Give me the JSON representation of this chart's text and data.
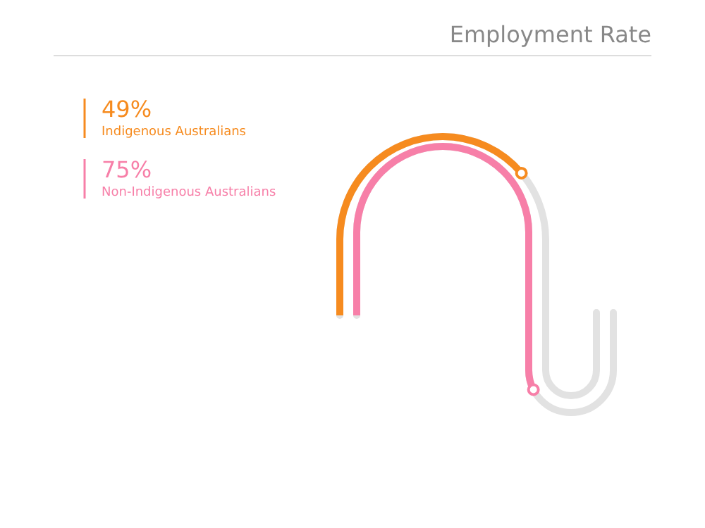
{
  "chart_data": {
    "type": "other",
    "title": "Employment Rate",
    "categories": [
      "Indigenous Australians",
      "Non-Indigenous Australians"
    ],
    "values": [
      49,
      75
    ],
    "value_labels": [
      "49%",
      "75%"
    ],
    "colors": [
      "#f68b1f",
      "#f77fa8"
    ]
  }
}
